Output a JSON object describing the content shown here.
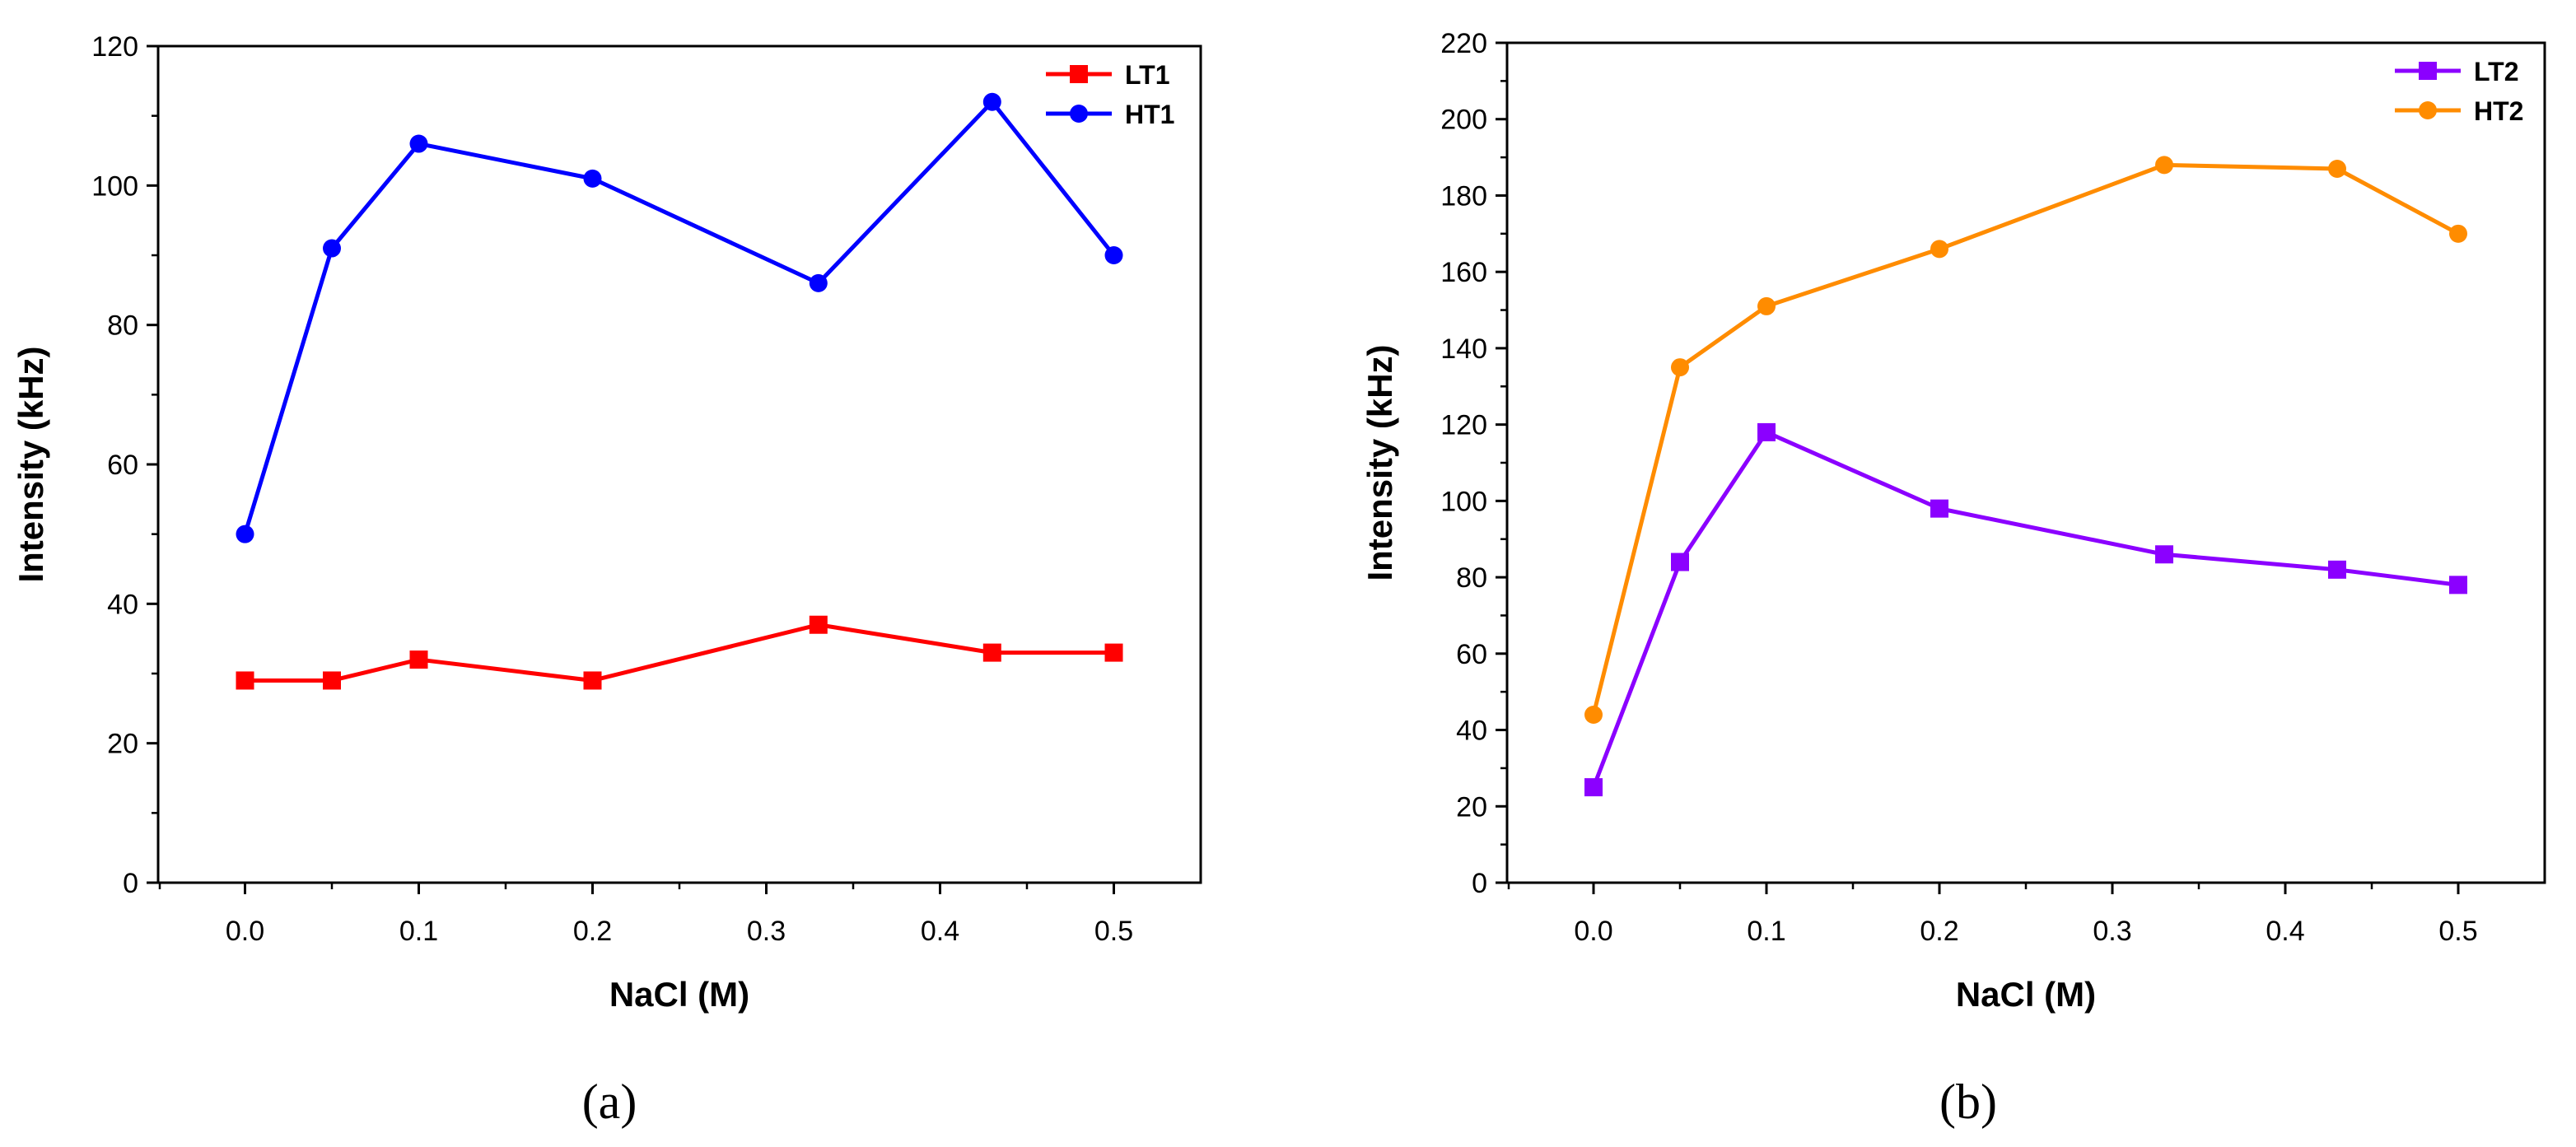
{
  "chart_data": [
    {
      "type": "line",
      "panel_label": "(a)",
      "xlabel": "NaCl (M)",
      "ylabel": "Intensity (kHz)",
      "xlim": [
        -0.05,
        0.55
      ],
      "ylim": [
        0,
        120
      ],
      "xticks": [
        "0.0",
        "0.1",
        "0.2",
        "0.3",
        "0.4",
        "0.5"
      ],
      "yticks": [
        "0",
        "20",
        "40",
        "60",
        "80",
        "100",
        "120"
      ],
      "x": [
        0,
        0.05,
        0.1,
        0.2,
        0.33,
        0.43,
        0.5
      ],
      "legend_position": "top-right",
      "series": [
        {
          "name": "LT1",
          "marker": "square",
          "color": "#ff0000",
          "values": [
            29,
            29,
            32,
            29,
            37,
            33,
            33
          ]
        },
        {
          "name": "HT1",
          "marker": "circle",
          "color": "#0000ff",
          "values": [
            50,
            91,
            106,
            101,
            86,
            112,
            90
          ]
        }
      ]
    },
    {
      "type": "line",
      "panel_label": "(b)",
      "xlabel": "NaCl (M)",
      "ylabel": "Intensity (kHz)",
      "xlim": [
        -0.05,
        0.55
      ],
      "ylim": [
        0,
        220
      ],
      "xticks": [
        "0.0",
        "0.1",
        "0.2",
        "0.3",
        "0.4",
        "0.5"
      ],
      "yticks": [
        "0",
        "20",
        "40",
        "60",
        "80",
        "100",
        "120",
        "140",
        "160",
        "180",
        "200",
        "220"
      ],
      "x": [
        0,
        0.05,
        0.1,
        0.2,
        0.33,
        0.43,
        0.5
      ],
      "legend_position": "top-right",
      "series": [
        {
          "name": "LT2",
          "marker": "square",
          "color": "#8b00ff",
          "values": [
            25,
            84,
            118,
            98,
            86,
            82,
            78
          ]
        },
        {
          "name": "HT2",
          "marker": "circle",
          "color": "#ff8c00",
          "values": [
            44,
            135,
            151,
            166,
            188,
            187,
            170
          ]
        }
      ]
    }
  ]
}
